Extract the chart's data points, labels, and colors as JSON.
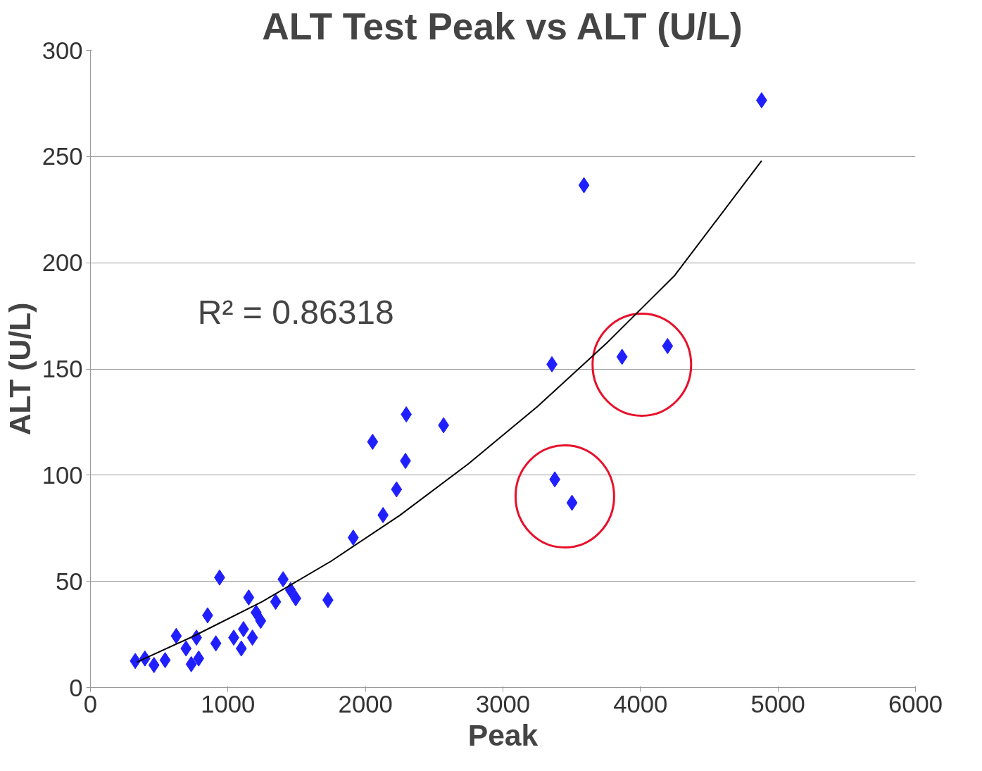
{
  "chart_data": {
    "type": "scatter",
    "title": "ALT Test Peak vs ALT (U/L)",
    "xlabel": "Peak",
    "ylabel": "ALT (U/L)",
    "annotations": [
      "R² = 0.86318"
    ],
    "xlim": [
      0,
      6000
    ],
    "xticks": [
      0,
      1000,
      2000,
      3000,
      4000,
      5000,
      6000
    ],
    "ylim": [
      0,
      300
    ],
    "yticks": [
      0,
      50,
      100,
      150,
      200,
      250,
      300
    ],
    "grid": "y",
    "marker": "diamond",
    "series": [
      {
        "color": "#1f1fff",
        "x": [
          326,
          396,
          462,
          543,
          624,
          695,
          733,
          787,
          771,
          852,
          912,
          939,
          1042,
          1097,
          1113,
          1178,
          1151,
          1205,
          1238,
          1347,
          1401,
          1455,
          1493,
          1727,
          1911,
          2128,
          2226,
          2291,
          2052,
          2297,
          2568,
          3356,
          3866,
          4197,
          3377,
          3502,
          3589,
          4881
        ],
        "values": [
          12.5,
          13.7,
          10.6,
          12.9,
          24.3,
          18.4,
          11,
          13.7,
          23.5,
          34,
          20.8,
          51.8,
          23.5,
          18.4,
          27.5,
          23.5,
          42.4,
          35.3,
          31.4,
          40.4,
          51,
          45.9,
          42,
          41.2,
          70.6,
          81.2,
          93.3,
          106.7,
          115.7,
          128.6,
          123.5,
          152.2,
          155.7,
          160.8,
          98,
          87,
          236.5,
          276.5
        ]
      },
      {
        "type": "line",
        "color": "#000000",
        "marker": "none",
        "x": [
          337,
          750,
          1250,
          1750,
          2250,
          2750,
          3250,
          3750,
          4250,
          4881
        ],
        "values": [
          12,
          24.2,
          40.5,
          59.5,
          81.1,
          105.4,
          132.3,
          161.9,
          194.1,
          248
        ]
      }
    ]
  }
}
